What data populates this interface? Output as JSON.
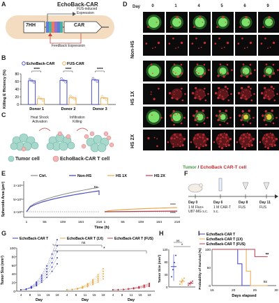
{
  "panels": {
    "a": {
      "letter": "A",
      "title": "EchoBack-CAR",
      "promoter": "7HH",
      "gene": "CAR",
      "expr_top": "FUS-induced\nExpression",
      "expr_bottom": "Feedback Expression"
    },
    "b": {
      "letter": "B",
      "ylabel": "Killing E fficiency (%)",
      "legend": [
        "EchoBack-CAR",
        "FUS-CAR"
      ],
      "sig": [
        "****",
        "****",
        "****"
      ],
      "chart_data": {
        "type": "bar",
        "categories": [
          "Donor 1",
          "Donor 2",
          "Donor 3"
        ],
        "series": [
          {
            "name": "EchoBack-CAR",
            "values": [
              62,
              63,
              64
            ]
          },
          {
            "name": "FUS-CAR",
            "values": [
              15,
              18,
              17
            ]
          }
        ],
        "ylim": [
          0,
          80
        ],
        "yticks": [
          "0",
          "20",
          "40",
          "60",
          "80"
        ]
      }
    },
    "c": {
      "letter": "C",
      "step1": "Heat Shock\nActivation",
      "step2": "Infiltration\nKilling",
      "legend_tumor": "Tumor cell",
      "legend_t": "EchoBack-CAR T cell"
    },
    "d": {
      "letter": "D",
      "day_header": "Day",
      "days": [
        "0",
        "1",
        "4",
        "5",
        "6",
        "9"
      ],
      "rows": [
        "Non-HS",
        "HS 1X",
        "HS 2X"
      ],
      "caption_tumor": "Tumor",
      "caption_sep": " / ",
      "caption_t": "EchoBack CAR-T cell"
    },
    "e": {
      "letter": "E",
      "ylabel": "Spheroids Area (μm²)",
      "xlabel": "Time (h)",
      "legend": [
        "Ctrl.",
        "Non-HS",
        "HS  1X",
        "HS  2X"
      ],
      "ns": "ns",
      "sig": [
        "****",
        "****"
      ],
      "yticks": [
        "1×10⁶",
        "5×10⁵",
        "1×10⁵"
      ],
      "xticks": [
        "1",
        "55",
        "109",
        "164",
        "218",
        "1",
        "55",
        "109",
        "164",
        "218"
      ]
    },
    "f": {
      "letter": "F",
      "steps": [
        {
          "day": "Day 0",
          "desc": "1 M Fluc+\nU87-MG s.c."
        },
        {
          "day": "Day 6",
          "desc": "1 M CAR-T\ns.c."
        },
        {
          "day": "Day 8",
          "desc": "FUS"
        },
        {
          "day": "Day 11",
          "desc": "FUS"
        }
      ]
    },
    "g": {
      "letter": "G",
      "ylabel": "Tumor Size (mm³)",
      "xlabel": "Day",
      "legend": [
        "EchoBack-CAR T",
        "EchoBack-CAR T (1X)",
        "EchoBack-CAR T (FUS)"
      ],
      "ns": "ns",
      "sig": "*",
      "xticks": [
        "4",
        "8",
        "11",
        "15",
        "18"
      ],
      "yticks": [
        "0",
        "20",
        "40",
        "60",
        "80",
        "100"
      ]
    },
    "h": {
      "letter": "H",
      "ylabel": "Tumor Size (mm³)",
      "ns": "ns",
      "sig": "*",
      "yticks": [
        "0",
        "40",
        "80",
        "120"
      ],
      "chart_data": {
        "type": "bar",
        "categories": [
          "EchoBack-CAR T",
          "EchoBack-CAR T (1X)",
          "EchoBack-CAR T (FUS)"
        ],
        "values": [
          65,
          18,
          12
        ]
      }
    },
    "i": {
      "letter": "I",
      "ylabel": "Probability of Survival (%)",
      "xlabel": "Days elapsed",
      "legend": [
        "EchoBack-CAR T",
        "EchoBack-CAR T (1X)",
        "EchoBack-CAR T (FUS)"
      ],
      "sig": "**",
      "ns": "ns",
      "xticks": [
        "15",
        "20",
        "25",
        "30"
      ],
      "yticks": [
        "0",
        "50",
        "100"
      ]
    }
  },
  "colors": {
    "blue": "#3a3fbd",
    "orange": "#e8a94a",
    "red": "#c23b4b",
    "gray": "#888888",
    "green": "#5fbe54"
  }
}
